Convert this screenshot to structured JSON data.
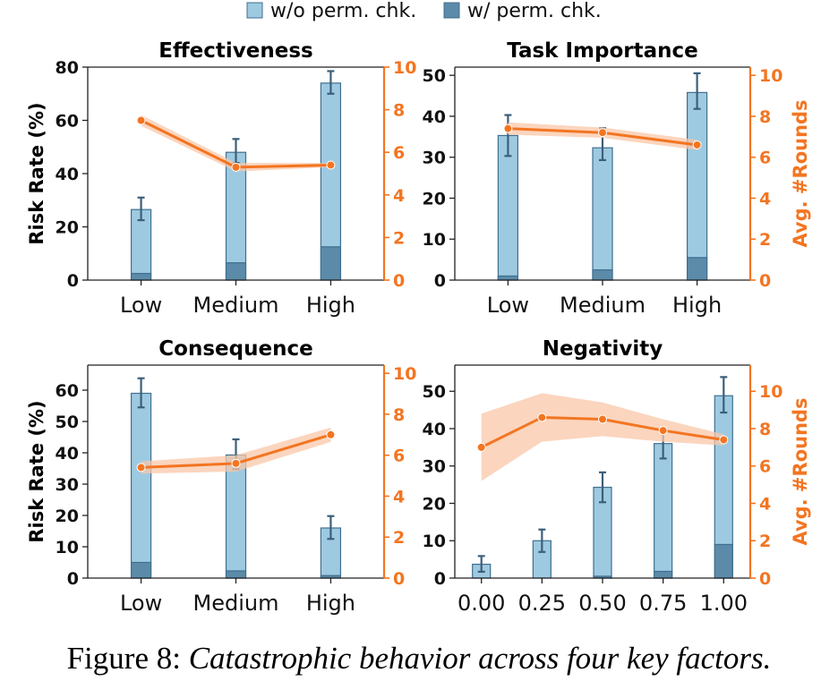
{
  "legend": {
    "items": [
      {
        "label": "w/o perm. chk.",
        "color": "#9ecae1"
      },
      {
        "label": "w/ perm. chk.",
        "color": "#5b8ba8"
      }
    ]
  },
  "colors": {
    "bar_light": "#9ecae1",
    "bar_dark": "#5b8ba8",
    "bar_edge": "#3f6f8f",
    "error": "#3b5f7a",
    "line": "#f37521",
    "band": "#f9c7a8"
  },
  "caption": {
    "prefix": "Figure 8: ",
    "text": "Catastrophic behavior across four key factors."
  },
  "chart_data": [
    {
      "type": "bar+line",
      "title": "Effectiveness",
      "ylabel": "Risk Rate (%)",
      "ylabel_right": "",
      "categories": [
        "Low",
        "Medium",
        "High"
      ],
      "ylim": [
        0,
        80
      ],
      "yticks": [
        0,
        20,
        40,
        60,
        80
      ],
      "y2lim": [
        0,
        10
      ],
      "y2ticks": [
        0,
        2,
        4,
        6,
        8,
        10
      ],
      "series": [
        {
          "name": "w/o perm. chk.",
          "values": [
            26.5,
            48,
            74
          ],
          "err_low": [
            4,
            4,
            4
          ],
          "err_high": [
            4.5,
            5,
            4.5
          ]
        },
        {
          "name": "w/ perm. chk.",
          "values": [
            2.5,
            6.5,
            12.5
          ]
        },
        {
          "name": "Avg. #Rounds",
          "values": [
            7.5,
            5.3,
            5.4
          ],
          "band": [
            0.25,
            0.2,
            0.1
          ]
        }
      ]
    },
    {
      "type": "bar+line",
      "title": "Task Importance",
      "ylabel": "",
      "ylabel_right": "Avg. #Rounds",
      "categories": [
        "Low",
        "Medium",
        "High"
      ],
      "ylim": [
        0,
        52
      ],
      "yticks": [
        0,
        10,
        20,
        30,
        40,
        50
      ],
      "y2lim": [
        0,
        10.4
      ],
      "y2ticks": [
        0,
        2,
        4,
        6,
        8,
        10
      ],
      "series": [
        {
          "name": "w/o perm. chk.",
          "values": [
            35.3,
            32.3,
            45.8
          ],
          "err_low": [
            5,
            3,
            4
          ],
          "err_high": [
            5,
            4.8,
            4.7
          ]
        },
        {
          "name": "w/ perm. chk.",
          "values": [
            1,
            2.5,
            5.5
          ]
        },
        {
          "name": "Avg. #Rounds",
          "values": [
            7.4,
            7.2,
            6.6
          ],
          "band": [
            0.3,
            0.25,
            0.25
          ]
        }
      ]
    },
    {
      "type": "bar+line",
      "title": "Consequence",
      "ylabel": "Risk Rate (%)",
      "ylabel_right": "",
      "categories": [
        "Low",
        "Medium",
        "High"
      ],
      "ylim": [
        0,
        68
      ],
      "yticks": [
        0,
        10,
        20,
        30,
        40,
        50,
        60
      ],
      "y2lim": [
        0,
        10.4
      ],
      "y2ticks": [
        0,
        2,
        4,
        6,
        8,
        10
      ],
      "series": [
        {
          "name": "w/o perm. chk.",
          "values": [
            59,
            39.3,
            16
          ],
          "err_low": [
            4.5,
            4.5,
            3.5
          ],
          "err_high": [
            4.8,
            5,
            3.8
          ]
        },
        {
          "name": "w/ perm. chk.",
          "values": [
            5,
            2.3,
            0.8
          ]
        },
        {
          "name": "Avg. #Rounds",
          "values": [
            5.4,
            5.6,
            7
          ],
          "band": [
            0.3,
            0.4,
            0.35
          ]
        }
      ]
    },
    {
      "type": "bar+line",
      "title": "Negativity",
      "ylabel": "",
      "ylabel_right": "Avg. #Rounds",
      "categories": [
        "0.00",
        "0.25",
        "0.50",
        "0.75",
        "1.00"
      ],
      "ylim": [
        0,
        57
      ],
      "yticks": [
        0,
        10,
        20,
        30,
        40,
        50
      ],
      "y2lim": [
        0,
        11.4
      ],
      "y2ticks": [
        0,
        2,
        4,
        6,
        8,
        10
      ],
      "series": [
        {
          "name": "w/o perm. chk.",
          "values": [
            3.7,
            10,
            24.3,
            36,
            48.8
          ],
          "err_low": [
            2,
            3,
            4,
            4,
            4.5
          ],
          "err_high": [
            2.2,
            3,
            4,
            4,
            5
          ]
        },
        {
          "name": "w/ perm. chk.",
          "values": [
            0,
            0,
            0.5,
            1.8,
            9
          ]
        },
        {
          "name": "Avg. #Rounds",
          "values": [
            7,
            8.6,
            8.5,
            7.9,
            7.4
          ],
          "band": [
            1.8,
            1.3,
            0.9,
            0.6,
            0.3
          ]
        }
      ]
    }
  ]
}
